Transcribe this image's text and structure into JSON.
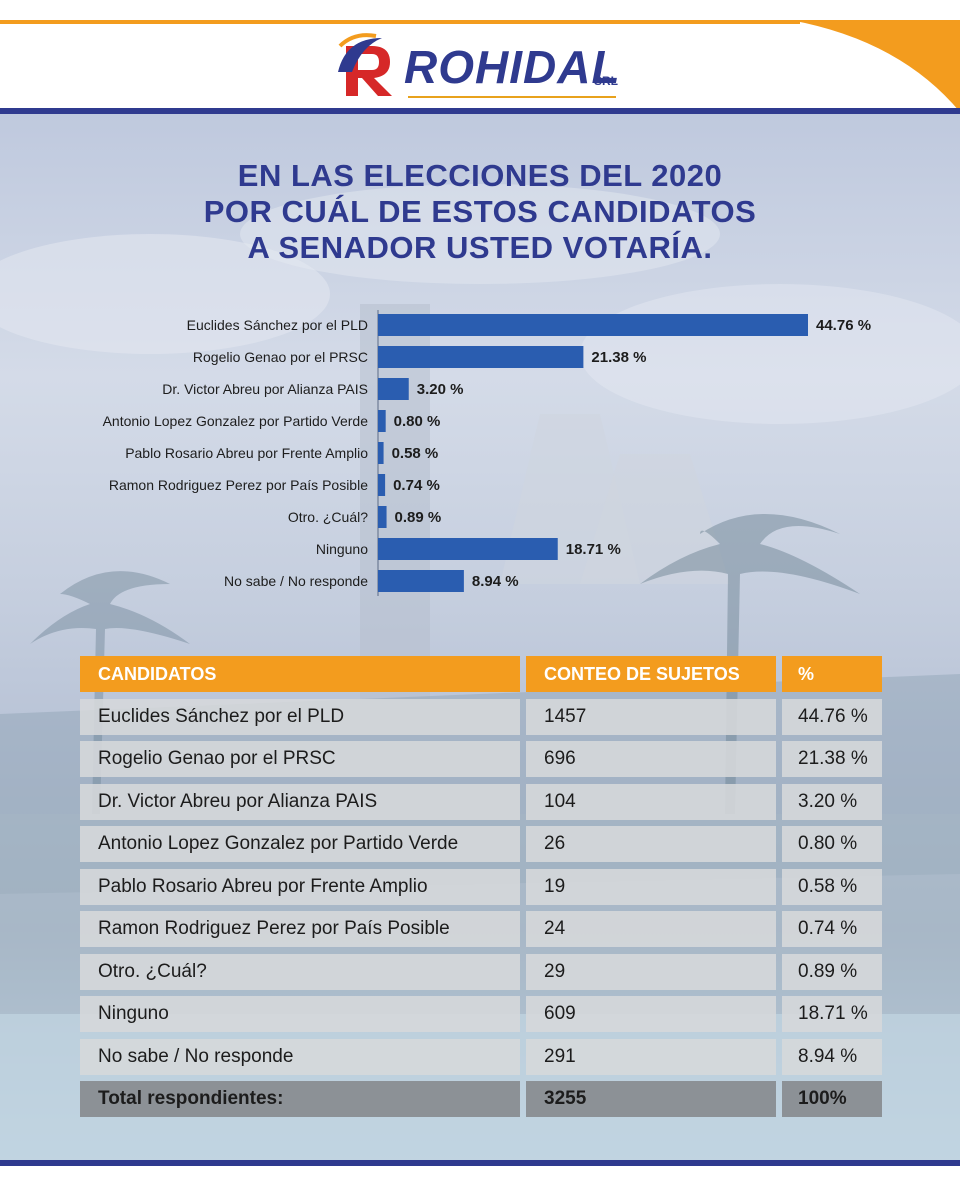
{
  "brand": {
    "logo_text": "ROHIDAL",
    "logo_suffix": "SRL"
  },
  "title_lines": [
    "EN LAS ELECCIONES DEL 2020",
    "POR CUÁL DE ESTOS CANDIDATOS",
    "A SENADOR USTED VOTARÍA."
  ],
  "colors": {
    "brand_blue": "#2f3a8f",
    "accent_orange": "#f39c1e",
    "bar_blue": "#2a5db0"
  },
  "chart_data": {
    "type": "bar",
    "orientation": "horizontal",
    "categories": [
      "Euclides Sánchez por el PLD",
      "Rogelio Genao por el PRSC",
      "Dr. Victor Abreu por Alianza PAIS",
      "Antonio Lopez Gonzalez por Partido Verde",
      "Pablo Rosario Abreu por Frente Amplio",
      "Ramon Rodriguez Perez por País Posible",
      "Otro. ¿Cuál?",
      "Ninguno",
      "No sabe / No responde"
    ],
    "values": [
      44.76,
      21.38,
      3.2,
      0.8,
      0.58,
      0.74,
      0.89,
      18.71,
      8.94
    ],
    "value_labels": [
      "44.76 %",
      "21.38 %",
      "3.20 %",
      "0.80 %",
      "0.58 %",
      "0.74 %",
      "0.89 %",
      "18.71 %",
      "8.94 %"
    ],
    "xlim": [
      0,
      44.76
    ],
    "grid": false,
    "legend": "none"
  },
  "table": {
    "headers": [
      "CANDIDATOS",
      "CONTEO DE SUJETOS",
      "%"
    ],
    "rows": [
      [
        "Euclides Sánchez por el PLD",
        "1457",
        "44.76 %"
      ],
      [
        "Rogelio Genao por el PRSC",
        "696",
        "21.38 %"
      ],
      [
        "Dr. Victor Abreu por Alianza PAIS",
        "104",
        "3.20 %"
      ],
      [
        "Antonio Lopez Gonzalez por Partido Verde",
        "26",
        "0.80 %"
      ],
      [
        "Pablo Rosario Abreu por Frente Amplio",
        "19",
        "0.58 %"
      ],
      [
        "Ramon Rodriguez Perez por País Posible",
        "24",
        "0.74 %"
      ],
      [
        "Otro. ¿Cuál?",
        "29",
        "0.89 %"
      ],
      [
        "Ninguno",
        "609",
        "18.71 %"
      ],
      [
        "No sabe / No responde",
        "291",
        "8.94 %"
      ]
    ],
    "total": [
      "Total respondientes:",
      "3255",
      "100%"
    ]
  }
}
